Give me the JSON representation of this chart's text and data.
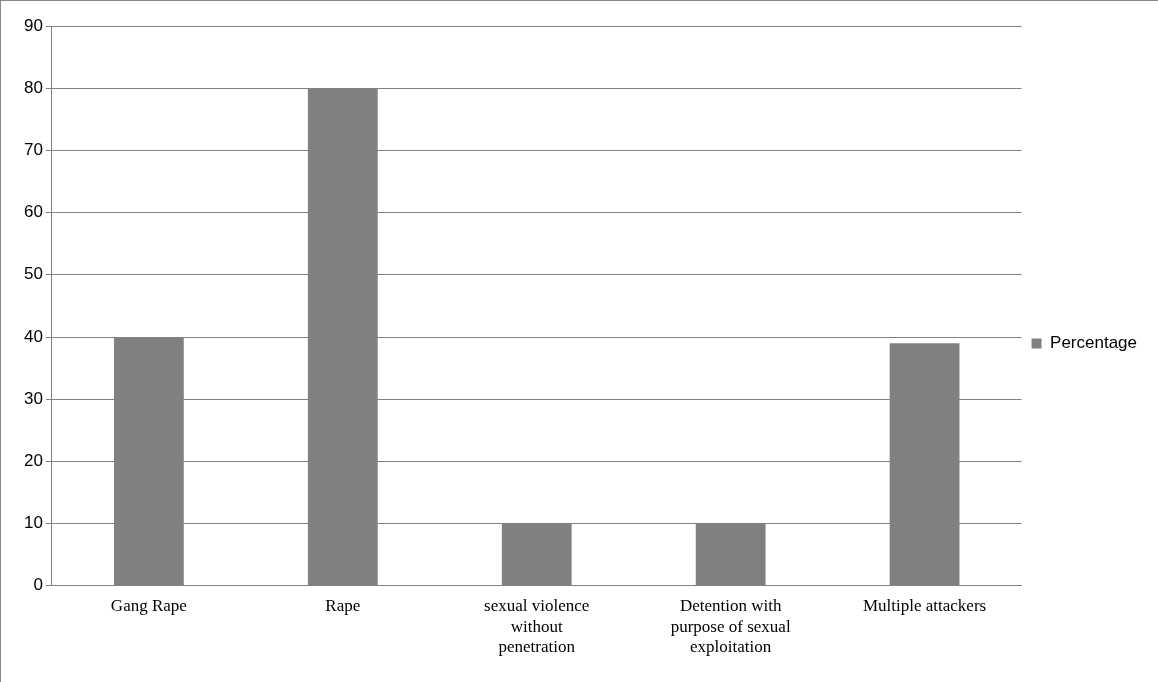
{
  "chart_data": {
    "type": "bar",
    "categories": [
      "Gang Rape",
      "Rape",
      "sexual violence without penetration",
      "Detention with purpose of sexual exploitation",
      "Multiple attackers"
    ],
    "series": [
      {
        "name": "Percentage",
        "color": "#808080",
        "values": [
          40,
          80,
          10,
          10,
          39
        ]
      }
    ],
    "ylim": [
      0,
      90
    ],
    "yticks": [
      0,
      10,
      20,
      30,
      40,
      50,
      60,
      70,
      80,
      90
    ],
    "grid": "y",
    "legend": "right"
  }
}
